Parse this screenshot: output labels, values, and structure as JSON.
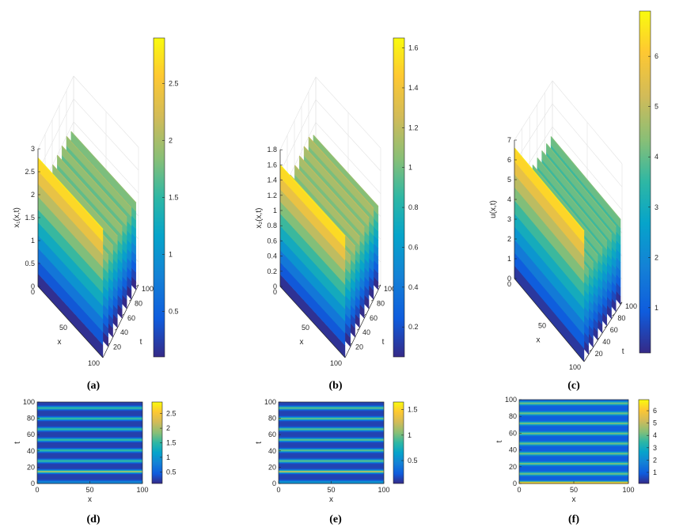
{
  "chart_data": [
    {
      "id": "a",
      "type": "surface3d",
      "caption": "(a)",
      "zlabel": "x₁(x,t)",
      "xlabel": "x",
      "ylabel": "t",
      "x_ticks": [
        "0",
        "50",
        "100"
      ],
      "t_ticks": [
        "20",
        "40",
        "60",
        "80",
        "100"
      ],
      "z_ticks": [
        "0",
        "0.5",
        "1",
        "1.5",
        "2",
        "2.5",
        "3"
      ],
      "zlim": [
        0,
        3
      ],
      "colorbar_ticks": [
        "0.5",
        "1",
        "1.5",
        "2",
        "2.5"
      ],
      "colorbar_range": [
        0.1,
        2.9
      ],
      "peak_value": 2.8,
      "ridge_t": [
        0,
        15,
        28,
        41,
        54,
        67,
        80,
        93
      ],
      "ridge_z": [
        2.8,
        2.0,
        2.0,
        2.0,
        2.0,
        2.0,
        2.0,
        1.9
      ]
    },
    {
      "id": "b",
      "type": "surface3d",
      "caption": "(b)",
      "zlabel": "x₂(x,t)",
      "xlabel": "x",
      "ylabel": "t",
      "x_ticks": [
        "0",
        "50",
        "100"
      ],
      "t_ticks": [
        "20",
        "40",
        "60",
        "80",
        "100"
      ],
      "z_ticks": [
        "0",
        "0.2",
        "0.4",
        "0.6",
        "0.8",
        "1",
        "1.2",
        "1.4",
        "1.6",
        "1.8"
      ],
      "zlim": [
        0,
        1.8
      ],
      "colorbar_ticks": [
        "0.2",
        "0.4",
        "0.6",
        "0.8",
        "1",
        "1.2",
        "1.4",
        "1.6"
      ],
      "colorbar_range": [
        0.05,
        1.65
      ],
      "peak_value": 1.6,
      "ridge_t": [
        0,
        15,
        28,
        41,
        54,
        67,
        80,
        93
      ],
      "ridge_z": [
        1.6,
        1.2,
        1.2,
        1.2,
        1.2,
        1.2,
        1.2,
        1.1
      ]
    },
    {
      "id": "c",
      "type": "surface3d",
      "caption": "(c)",
      "zlabel": "u(x,t)",
      "xlabel": "x",
      "ylabel": "t",
      "x_ticks": [
        "0",
        "50",
        "100"
      ],
      "t_ticks": [
        "20",
        "40",
        "60",
        "80",
        "100"
      ],
      "z_ticks": [
        "0",
        "1",
        "2",
        "3",
        "4",
        "5",
        "6",
        "7"
      ],
      "zlim": [
        0,
        7
      ],
      "colorbar_ticks": [
        "1",
        "2",
        "3",
        "4",
        "5",
        "6"
      ],
      "colorbar_range": [
        0.1,
        6.9
      ],
      "peak_value": 6.6,
      "ridge_t": [
        0,
        12,
        24,
        36,
        48,
        60,
        72,
        84,
        96
      ],
      "ridge_z": [
        6.6,
        4.3,
        4.3,
        4.3,
        4.3,
        4.3,
        4.3,
        4.3,
        4.3
      ]
    },
    {
      "id": "d",
      "type": "heatmap",
      "caption": "(d)",
      "xlabel": "x",
      "ylabel": "t",
      "x_ticks": [
        "0",
        "50",
        "100"
      ],
      "y_ticks": [
        "0",
        "20",
        "40",
        "60",
        "80",
        "100"
      ],
      "xlim": [
        0,
        100
      ],
      "ylim": [
        0,
        100
      ],
      "colorbar_ticks": [
        "0.5",
        "1",
        "1.5",
        "2",
        "2.5"
      ],
      "colorbar_range": [
        0.1,
        2.9
      ],
      "base_value": 0.25,
      "stripe_t": [
        2,
        15,
        28,
        41,
        54,
        67,
        80,
        93
      ],
      "stripe_peak": [
        0.9,
        2.0,
        1.6,
        1.6,
        1.6,
        1.6,
        1.6,
        1.6
      ]
    },
    {
      "id": "e",
      "type": "heatmap",
      "caption": "(e)",
      "xlabel": "x",
      "ylabel": "t",
      "x_ticks": [
        "0",
        "50",
        "100"
      ],
      "y_ticks": [
        "0",
        "20",
        "40",
        "60",
        "80",
        "100"
      ],
      "xlim": [
        0,
        100
      ],
      "ylim": [
        0,
        100
      ],
      "colorbar_ticks": [
        "0.5",
        "1",
        "1.5"
      ],
      "colorbar_range": [
        0.05,
        1.65
      ],
      "base_value": 0.15,
      "stripe_t": [
        2,
        15,
        28,
        41,
        54,
        67,
        80,
        93
      ],
      "stripe_peak": [
        0.6,
        1.2,
        1.0,
        1.0,
        1.0,
        1.0,
        1.0,
        1.0
      ]
    },
    {
      "id": "f",
      "type": "heatmap",
      "caption": "(f)",
      "xlabel": "x",
      "ylabel": "t",
      "x_ticks": [
        "0",
        "50",
        "100"
      ],
      "y_ticks": [
        "0",
        "20",
        "40",
        "60",
        "80",
        "100"
      ],
      "xlim": [
        0,
        100
      ],
      "ylim": [
        0,
        100
      ],
      "colorbar_ticks": [
        "1",
        "2",
        "3",
        "4",
        "5",
        "6"
      ],
      "colorbar_range": [
        0.1,
        6.9
      ],
      "base_value": 1.0,
      "stripe_t": [
        1,
        12,
        24,
        36,
        48,
        60,
        72,
        84,
        96
      ],
      "stripe_peak": [
        6.6,
        4.3,
        4.3,
        4.3,
        4.3,
        4.3,
        4.3,
        4.3,
        4.3
      ]
    }
  ]
}
